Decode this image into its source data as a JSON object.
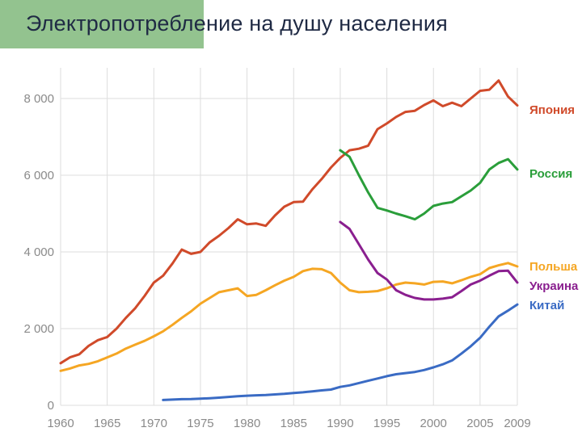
{
  "slide": {
    "title": "Электропотребление на душу населения",
    "accent_color": "#93c38f"
  },
  "chart_data": {
    "type": "line",
    "title": "Электропотребление на душу населения",
    "xlabel": "",
    "ylabel": "",
    "xlim": [
      1960,
      2009
    ],
    "ylim": [
      0,
      8800
    ],
    "grid": true,
    "legend_placement": "right",
    "x_ticks": [
      1960,
      1965,
      1970,
      1975,
      1980,
      1985,
      1990,
      1995,
      2000,
      2005,
      2009
    ],
    "y_ticks": [
      0,
      2000,
      4000,
      6000,
      8000
    ],
    "y_tick_labels": [
      "0",
      "2 000",
      "4 000",
      "6 000",
      "8 000"
    ],
    "series": [
      {
        "name": "Япония",
        "color": "#d04a2a",
        "x": [
          1960,
          1961,
          1962,
          1963,
          1964,
          1965,
          1966,
          1967,
          1968,
          1969,
          1970,
          1971,
          1972,
          1973,
          1974,
          1975,
          1976,
          1977,
          1978,
          1979,
          1980,
          1981,
          1982,
          1983,
          1984,
          1985,
          1986,
          1987,
          1988,
          1989,
          1990,
          1991,
          1992,
          1993,
          1994,
          1995,
          1996,
          1997,
          1998,
          1999,
          2000,
          2001,
          2002,
          2003,
          2004,
          2005,
          2006,
          2007,
          2008,
          2009
        ],
        "values": [
          1100,
          1250,
          1330,
          1550,
          1700,
          1780,
          2000,
          2280,
          2530,
          2850,
          3200,
          3380,
          3700,
          4060,
          3950,
          4000,
          4250,
          4420,
          4620,
          4850,
          4720,
          4740,
          4680,
          4950,
          5180,
          5300,
          5310,
          5630,
          5900,
          6200,
          6450,
          6650,
          6690,
          6770,
          7200,
          7350,
          7520,
          7650,
          7680,
          7830,
          7950,
          7800,
          7890,
          7800,
          8000,
          8200,
          8230,
          8470,
          8050,
          7820
        ]
      },
      {
        "name": "Россия",
        "color": "#2a9e3a",
        "x": [
          1990,
          1991,
          1992,
          1993,
          1994,
          1995,
          1996,
          1997,
          1998,
          1999,
          2000,
          2001,
          2002,
          2003,
          2004,
          2005,
          2006,
          2007,
          2008,
          2009
        ],
        "values": [
          6650,
          6480,
          6000,
          5550,
          5150,
          5080,
          5000,
          4930,
          4850,
          5000,
          5200,
          5260,
          5300,
          5450,
          5600,
          5800,
          6150,
          6320,
          6420,
          6150
        ]
      },
      {
        "name": "Польша",
        "color": "#f5a623",
        "x": [
          1960,
          1961,
          1962,
          1963,
          1964,
          1965,
          1966,
          1967,
          1968,
          1969,
          1970,
          1971,
          1972,
          1973,
          1974,
          1975,
          1976,
          1977,
          1978,
          1979,
          1980,
          1981,
          1982,
          1983,
          1984,
          1985,
          1986,
          1987,
          1988,
          1989,
          1990,
          1991,
          1992,
          1993,
          1994,
          1995,
          1996,
          1997,
          1998,
          1999,
          2000,
          2001,
          2002,
          2003,
          2004,
          2005,
          2006,
          2007,
          2008,
          2009
        ],
        "values": [
          900,
          960,
          1040,
          1080,
          1150,
          1250,
          1350,
          1480,
          1580,
          1680,
          1800,
          1930,
          2100,
          2280,
          2450,
          2650,
          2800,
          2950,
          3000,
          3050,
          2850,
          2880,
          3000,
          3130,
          3250,
          3350,
          3500,
          3560,
          3550,
          3450,
          3200,
          3000,
          2950,
          2960,
          2980,
          3050,
          3150,
          3200,
          3180,
          3150,
          3220,
          3230,
          3180,
          3260,
          3350,
          3420,
          3580,
          3650,
          3710,
          3620
        ]
      },
      {
        "name": "Украина",
        "color": "#8a1f8f",
        "x": [
          1990,
          1991,
          1992,
          1993,
          1994,
          1995,
          1996,
          1997,
          1998,
          1999,
          2000,
          2001,
          2002,
          2003,
          2004,
          2005,
          2006,
          2007,
          2008,
          2009
        ],
        "values": [
          4780,
          4600,
          4200,
          3800,
          3450,
          3280,
          3000,
          2880,
          2800,
          2760,
          2760,
          2780,
          2820,
          2980,
          3150,
          3250,
          3380,
          3500,
          3510,
          3200
        ]
      },
      {
        "name": "Китай",
        "color": "#3a6bc4",
        "x": [
          1971,
          1972,
          1973,
          1974,
          1975,
          1976,
          1977,
          1978,
          1979,
          1980,
          1981,
          1982,
          1983,
          1984,
          1985,
          1986,
          1987,
          1988,
          1989,
          1990,
          1991,
          1992,
          1993,
          1994,
          1995,
          1996,
          1997,
          1998,
          1999,
          2000,
          2001,
          2002,
          2003,
          2004,
          2005,
          2006,
          2007,
          2008,
          2009
        ],
        "values": [
          140,
          150,
          160,
          165,
          175,
          185,
          200,
          220,
          235,
          250,
          260,
          270,
          285,
          300,
          320,
          340,
          365,
          390,
          410,
          480,
          520,
          580,
          640,
          700,
          760,
          810,
          840,
          870,
          920,
          990,
          1070,
          1170,
          1350,
          1540,
          1760,
          2050,
          2320,
          2470,
          2630
        ]
      }
    ]
  }
}
